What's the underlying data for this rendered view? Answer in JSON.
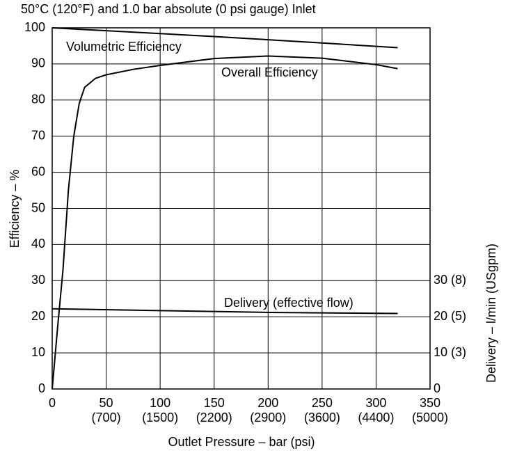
{
  "chart_data": {
    "type": "line",
    "title": "50°C (120°F) and 1.0 bar absolute (0 psi gauge) Inlet",
    "xlabel": "Outlet Pressure – bar (psi)",
    "ylabel": "Efficiency – %",
    "y2label": "Delivery – l/min (USgpm)",
    "xlim": [
      0,
      350
    ],
    "xticks": [
      0,
      50,
      100,
      150,
      200,
      250,
      300,
      350
    ],
    "xtick_psi_labels": [
      null,
      "(700)",
      "(1500)",
      "(2200)",
      "(2900)",
      "(3600)",
      "(4400)",
      "(5000)"
    ],
    "ylim": [
      0,
      100
    ],
    "yticks": [
      0,
      10,
      20,
      30,
      40,
      50,
      60,
      70,
      80,
      90,
      100
    ],
    "y2lim": [
      0,
      100
    ],
    "y2ticks": [
      0,
      {
        "value": 10,
        "label": "10 (3)"
      },
      {
        "value": 20,
        "label": "20 (5)"
      },
      {
        "value": 30,
        "label": "30 (8)"
      }
    ],
    "grid": true,
    "series": [
      {
        "name": "Volumetric Efficiency",
        "color": "#000000",
        "x": [
          0,
          50,
          100,
          150,
          200,
          250,
          320
        ],
        "values": [
          100,
          99.2,
          98.4,
          97.6,
          96.7,
          95.8,
          94.5
        ]
      },
      {
        "name": "Overall Efficiency",
        "color": "#000000",
        "x": [
          0,
          5,
          10,
          15,
          20,
          25,
          30,
          40,
          50,
          75,
          100,
          150,
          200,
          250,
          300,
          320
        ],
        "values": [
          0,
          17,
          33,
          55,
          70,
          79,
          83.5,
          86,
          87,
          88.5,
          89.6,
          91.5,
          92.2,
          91.6,
          89.8,
          88.7
        ]
      },
      {
        "name": "Delivery (effective flow)",
        "color": "#000000",
        "axis": "y2",
        "x": [
          0,
          100,
          200,
          320
        ],
        "values": [
          22.2,
          21.7,
          21.2,
          20.9
        ]
      }
    ]
  }
}
